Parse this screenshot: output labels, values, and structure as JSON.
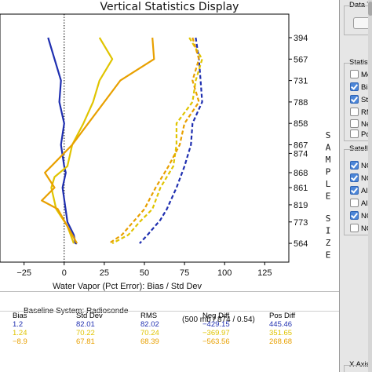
{
  "chart": {
    "title": "Vertical Statistics Display",
    "xlabel": "Water Vapor (Pct Error): Bias / Std Dev",
    "side_label": "SAMPLE SIZE"
  },
  "chart_data": {
    "type": "line",
    "xlim": [
      -40,
      140
    ],
    "x_ticks": [
      -25,
      0,
      25,
      50,
      75,
      100,
      125
    ],
    "zero_line": true,
    "y_levels": 11,
    "sample_sizes": [
      "394",
      "567",
      "731",
      "788",
      "858",
      "867",
      "874",
      "868",
      "861",
      "819",
      "773",
      "564"
    ],
    "sample_size_level": [
      0,
      1,
      2,
      3,
      4,
      5,
      5.4,
      6.3,
      7.0,
      7.8,
      8.6,
      9.6
    ],
    "series": [
      {
        "color": "#1f2fb0",
        "dash": false,
        "points": [
          [
            -10,
            0
          ],
          [
            -6,
            1
          ],
          [
            -2,
            2
          ],
          [
            -3,
            3
          ],
          [
            0,
            4
          ],
          [
            -2,
            5
          ],
          [
            0,
            6
          ],
          [
            1,
            6.3
          ],
          [
            -1,
            7
          ],
          [
            2,
            8.6
          ],
          [
            6,
            9.2
          ],
          [
            7,
            9.6
          ],
          [
            8,
            9.6
          ]
        ]
      },
      {
        "color": "#e0c400",
        "dash": false,
        "points": [
          [
            22,
            0
          ],
          [
            30,
            1
          ],
          [
            22,
            2
          ],
          [
            18,
            3
          ],
          [
            12,
            4
          ],
          [
            5,
            5
          ],
          [
            2,
            6
          ],
          [
            -6,
            6.5
          ],
          [
            -8,
            7
          ],
          [
            -5,
            8
          ],
          [
            2,
            8.8
          ],
          [
            5,
            9.4
          ],
          [
            6,
            9.6
          ]
        ]
      },
      {
        "color": "#e8a000",
        "dash": false,
        "points": [
          [
            55,
            0
          ],
          [
            56,
            1
          ],
          [
            35,
            2
          ],
          [
            25,
            3
          ],
          [
            15,
            4
          ],
          [
            5,
            5
          ],
          [
            -8,
            6
          ],
          [
            -12,
            6.3
          ],
          [
            -6,
            7
          ],
          [
            -14,
            7.6
          ],
          [
            -4,
            8
          ],
          [
            5,
            9.2
          ],
          [
            8,
            9.6
          ]
        ]
      },
      {
        "color": "#1f2fb0",
        "dash": true,
        "points": [
          [
            82,
            0
          ],
          [
            84,
            1
          ],
          [
            85,
            2
          ],
          [
            86,
            3
          ],
          [
            80,
            4
          ],
          [
            79,
            5
          ],
          [
            75,
            6
          ],
          [
            70,
            7
          ],
          [
            64,
            8
          ],
          [
            60,
            8.5
          ],
          [
            52,
            9.2
          ],
          [
            47,
            9.6
          ]
        ]
      },
      {
        "color": "#e0c400",
        "dash": true,
        "points": [
          [
            78,
            0
          ],
          [
            86,
            1
          ],
          [
            82,
            2
          ],
          [
            80,
            3
          ],
          [
            70,
            4
          ],
          [
            70,
            5
          ],
          [
            68,
            6
          ],
          [
            60,
            7
          ],
          [
            55,
            8
          ],
          [
            47,
            8.6
          ],
          [
            40,
            9.2
          ],
          [
            30,
            9.6
          ]
        ]
      },
      {
        "color": "#e8a000",
        "dash": true,
        "points": [
          [
            80,
            0
          ],
          [
            84,
            1
          ],
          [
            80,
            2
          ],
          [
            84,
            3
          ],
          [
            75,
            4
          ],
          [
            72,
            5
          ],
          [
            65,
            6
          ],
          [
            57,
            7
          ],
          [
            50,
            8
          ],
          [
            43,
            8.6
          ],
          [
            36,
            9.2
          ],
          [
            28,
            9.6
          ]
        ]
      }
    ]
  },
  "table": {
    "baseline_system": "Baseline System: Radiosonde",
    "baseline_info": "(500 mb / 874 / 0.54)",
    "headers": [
      "Bias",
      "Std Dev",
      "RMS",
      "Neg Diff",
      "Pos Diff"
    ],
    "rows": [
      {
        "color": "#1f2fb0",
        "values": [
          "1.2",
          "82.01",
          "82.02",
          "−429.15",
          "445.46"
        ]
      },
      {
        "color": "#e0c400",
        "values": [
          "1.24",
          "70.22",
          "70.24",
          "−369.97",
          "351.65"
        ]
      },
      {
        "color": "#e8a000",
        "values": [
          "−8.9",
          "67.81",
          "68.39",
          "−563.56",
          "268.68"
        ]
      }
    ]
  },
  "side_panel": {
    "data_type_title": "Data Ty",
    "statistics_title": "Statistic",
    "statistics_items": [
      {
        "label": "Mea",
        "checked": false
      },
      {
        "label": "Bias",
        "checked": true
      },
      {
        "label": "Std",
        "checked": true
      },
      {
        "label": "RMS",
        "checked": false
      },
      {
        "label": "Neg",
        "checked": false
      },
      {
        "label": "Pos",
        "checked": false
      }
    ],
    "satellite_title": "Satellit",
    "satellite_items": [
      {
        "label": "NO",
        "checked": true
      },
      {
        "label": "NO",
        "checked": true
      },
      {
        "label": "All",
        "checked": true
      },
      {
        "label": "All",
        "checked": false
      },
      {
        "label": "NO",
        "checked": true
      },
      {
        "label": "NO",
        "checked": false
      }
    ],
    "xaxis_title": "X Axis"
  }
}
